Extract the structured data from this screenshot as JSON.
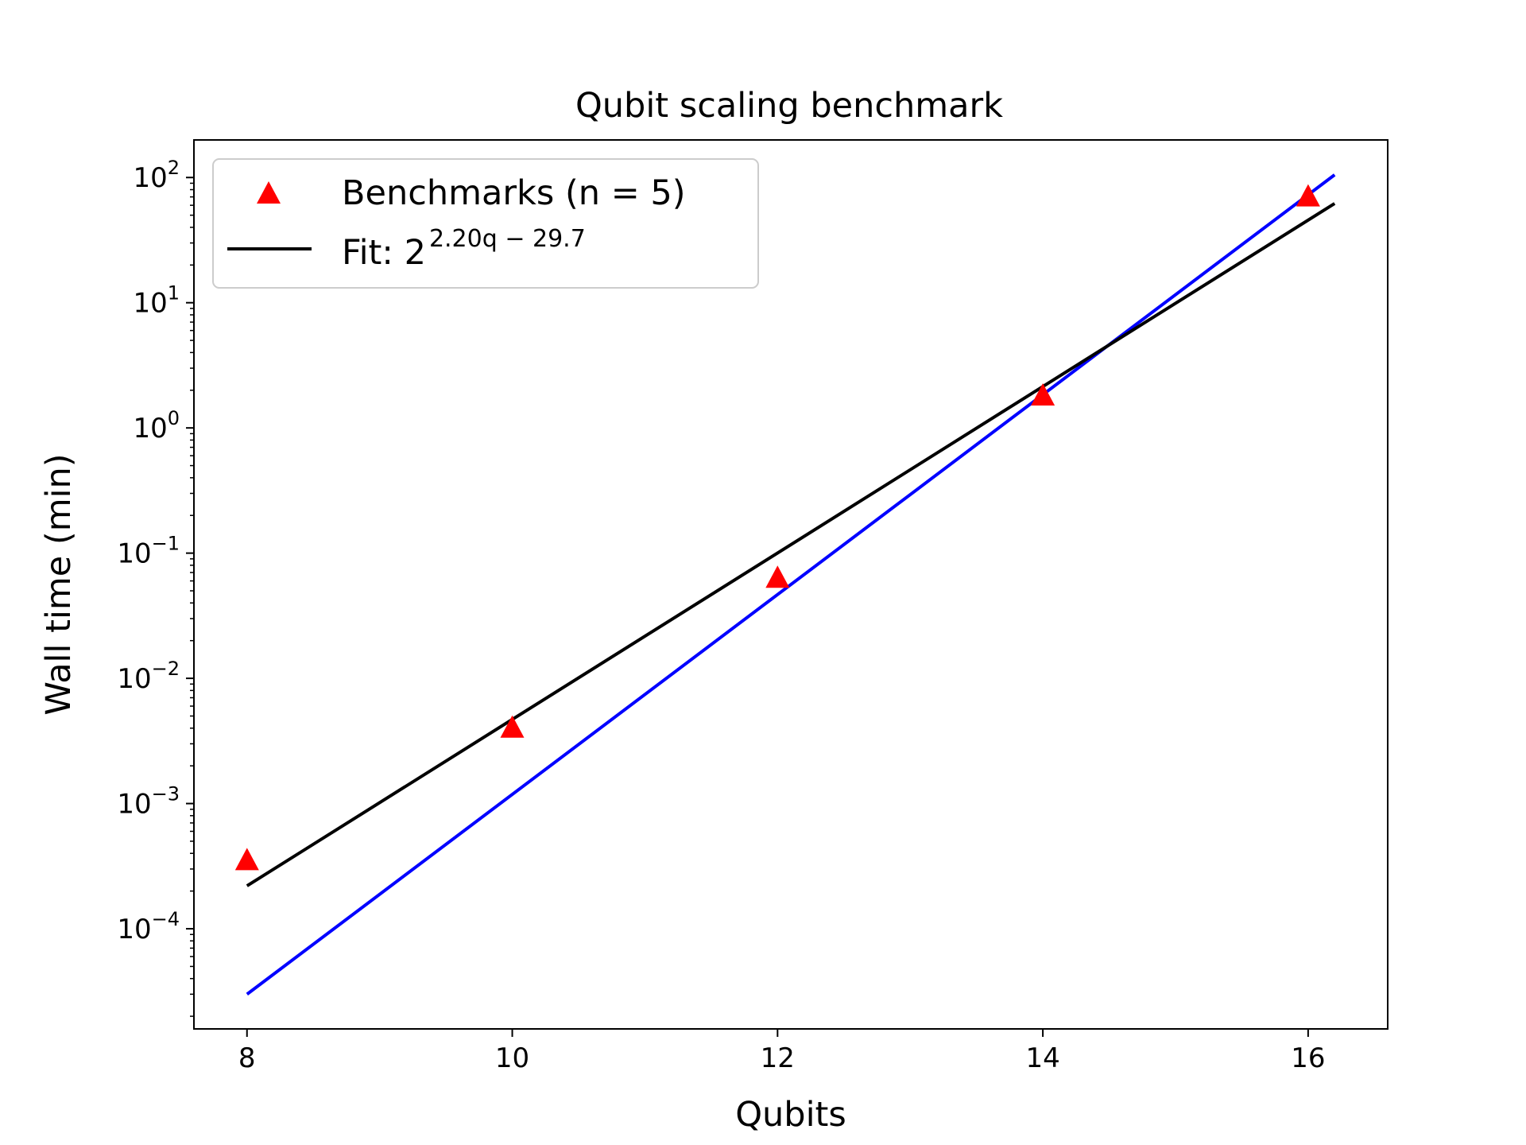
{
  "chart_data": {
    "type": "scatter",
    "title": "Qubit scaling benchmark",
    "xlabel": "Qubits",
    "ylabel": "Wall time (min)",
    "xlim": [
      7.6,
      16.6
    ],
    "ylim_log10": [
      -4.8,
      2.3
    ],
    "y_scale": "log",
    "x_ticks": [
      {
        "value": 8,
        "label": "8"
      },
      {
        "value": 10,
        "label": "10"
      },
      {
        "value": 12,
        "label": "12"
      },
      {
        "value": 14,
        "label": "14"
      },
      {
        "value": 16,
        "label": "16"
      }
    ],
    "y_ticks": [
      {
        "exp": -4,
        "base": "10",
        "sup": "−4"
      },
      {
        "exp": -3,
        "base": "10",
        "sup": "−3"
      },
      {
        "exp": -2,
        "base": "10",
        "sup": "−2"
      },
      {
        "exp": -1,
        "base": "10",
        "sup": "−1"
      },
      {
        "exp": 0,
        "base": "10",
        "sup": "0"
      },
      {
        "exp": 1,
        "base": "10",
        "sup": "1"
      },
      {
        "exp": 2,
        "base": "10",
        "sup": "2"
      }
    ],
    "grid": false,
    "legend_position": "upper-left",
    "series": [
      {
        "name": "Benchmarks (n = 5)",
        "kind": "scatter",
        "marker": "triangle",
        "color": "#ff0000",
        "x": [
          8,
          10,
          12,
          14,
          16
        ],
        "y": [
          0.00035,
          0.004,
          0.063,
          1.8,
          70
        ]
      },
      {
        "name_main": "Fit: 2",
        "name_sup": "2.20q − 29.7",
        "kind": "line",
        "color": "#000000",
        "x": [
          8,
          16.2
        ],
        "y": [
          0.00022,
          62
        ]
      },
      {
        "kind": "line",
        "color": "#0000ff",
        "x": [
          8,
          16.2
        ],
        "y": [
          3e-05,
          105
        ]
      }
    ]
  }
}
